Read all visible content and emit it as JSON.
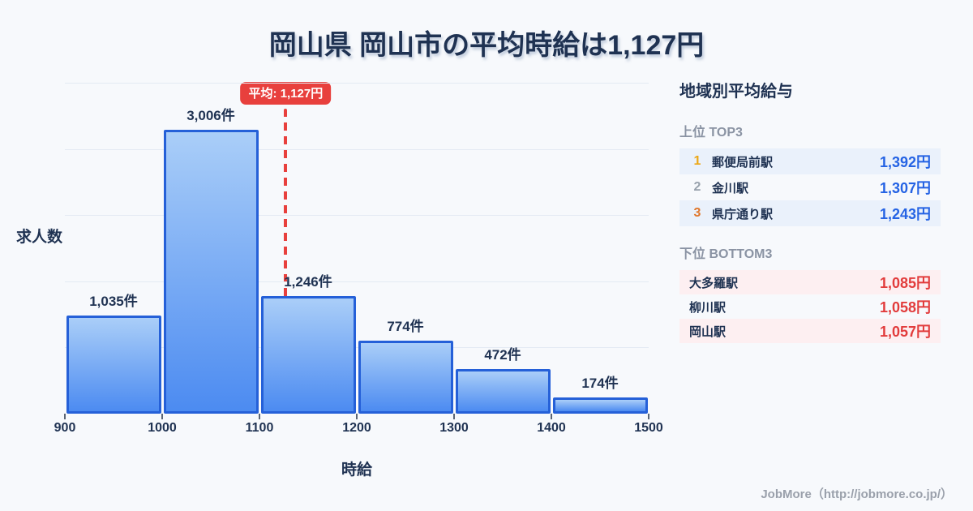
{
  "title": "岡山県 岡山市の平均時給は1,127円",
  "chart_data": {
    "type": "bar",
    "title": "岡山県 岡山市の平均時給は1,127円",
    "xlabel": "時給",
    "ylabel": "求人数",
    "bin_edges": [
      900,
      1000,
      1100,
      1200,
      1300,
      1400,
      1500
    ],
    "categories": [
      "900-1000",
      "1000-1100",
      "1100-1200",
      "1200-1300",
      "1300-1400",
      "1400-1500"
    ],
    "values": [
      1035,
      3006,
      1246,
      774,
      472,
      174
    ],
    "bar_labels": [
      "1,035件",
      "3,006件",
      "1,246件",
      "774件",
      "472件",
      "174件"
    ],
    "x_ticks": [
      "900",
      "1000",
      "1100",
      "1200",
      "1300",
      "1400",
      "1500"
    ],
    "xlim": [
      900,
      1500
    ],
    "ylim": [
      0,
      3500
    ],
    "grid": true,
    "gridline_count": 5,
    "average": {
      "value": 1127,
      "label": "平均: 1,127円"
    }
  },
  "sidebar": {
    "title": "地域別平均給与",
    "top3": {
      "heading": "上位 TOP3",
      "rows": [
        {
          "rank": "1",
          "rank_color": "#eca715",
          "name": "郵便局前駅",
          "value": "1,392円"
        },
        {
          "rank": "2",
          "rank_color": "#98a1ac",
          "name": "金川駅",
          "value": "1,307円"
        },
        {
          "rank": "3",
          "rank_color": "#e0762a",
          "name": "県庁通り駅",
          "value": "1,243円"
        }
      ]
    },
    "bottom3": {
      "heading": "下位 BOTTOM3",
      "rows": [
        {
          "name": "大多羅駅",
          "value": "1,085円"
        },
        {
          "name": "柳川駅",
          "value": "1,058円"
        },
        {
          "name": "岡山駅",
          "value": "1,057円"
        }
      ]
    }
  },
  "footer": {
    "credit": "JobMore（http://jobmore.co.jp/）"
  },
  "colors": {
    "background": "#f7f9fc",
    "title_text": "#1f3252",
    "bar_gradient_top": "#aacef8",
    "bar_gradient_bottom": "#4c8bf1",
    "bar_border": "#2560d8",
    "gridline": "#e4eaf3",
    "average_red": "#e8403d",
    "top_row_bg": "#eaf1fb",
    "bottom_row_bg": "#fdeff1",
    "value_blue": "#2563e4",
    "value_red": "#e23c3c",
    "section_heading_gray": "#8a93a3",
    "footer_gray": "#9aa0ab"
  }
}
